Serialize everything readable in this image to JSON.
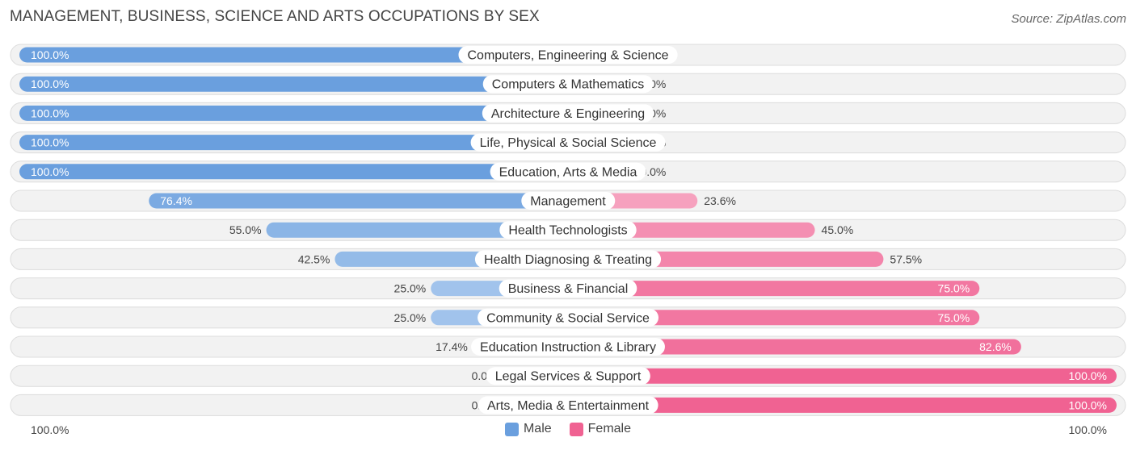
{
  "title": "MANAGEMENT, BUSINESS, SCIENCE AND ARTS OCCUPATIONS BY SEX",
  "source": "Source: ZipAtlas.com",
  "axis": {
    "left_label": "100.0%",
    "right_label": "100.0%"
  },
  "legend": [
    {
      "name": "Male",
      "color": "#6a9fde"
    },
    {
      "name": "Female",
      "color": "#f06292"
    }
  ],
  "chart_data": {
    "type": "bar",
    "orientation": "horizontal-diverging",
    "title": "MANAGEMENT, BUSINESS, SCIENCE AND ARTS OCCUPATIONS BY SEX",
    "categories": [
      "Computers, Engineering & Science",
      "Computers & Mathematics",
      "Architecture & Engineering",
      "Life, Physical & Social Science",
      "Education, Arts & Media",
      "Management",
      "Health Technologists",
      "Health Diagnosing & Treating",
      "Business & Financial",
      "Community & Social Service",
      "Education Instruction & Library",
      "Legal Services & Support",
      "Arts, Media & Entertainment"
    ],
    "series": [
      {
        "name": "Male",
        "values": [
          100.0,
          100.0,
          100.0,
          100.0,
          100.0,
          76.4,
          55.0,
          42.5,
          25.0,
          25.0,
          17.4,
          0.0,
          0.0
        ],
        "labels": [
          "100.0%",
          "100.0%",
          "100.0%",
          "100.0%",
          "100.0%",
          "76.4%",
          "55.0%",
          "42.5%",
          "25.0%",
          "25.0%",
          "17.4%",
          "0.0%",
          "0.0%"
        ]
      },
      {
        "name": "Female",
        "values": [
          0.0,
          0.0,
          0.0,
          0.0,
          0.0,
          23.6,
          45.0,
          57.5,
          75.0,
          75.0,
          82.6,
          100.0,
          100.0
        ],
        "labels": [
          "0.0%",
          "0.0%",
          "0.0%",
          "0.0%",
          "0.0%",
          "23.6%",
          "45.0%",
          "57.5%",
          "75.0%",
          "75.0%",
          "82.6%",
          "100.0%",
          "100.0%"
        ]
      }
    ],
    "xlim": [
      -100,
      100
    ],
    "legend_position": "bottom-center",
    "grid": false
  }
}
